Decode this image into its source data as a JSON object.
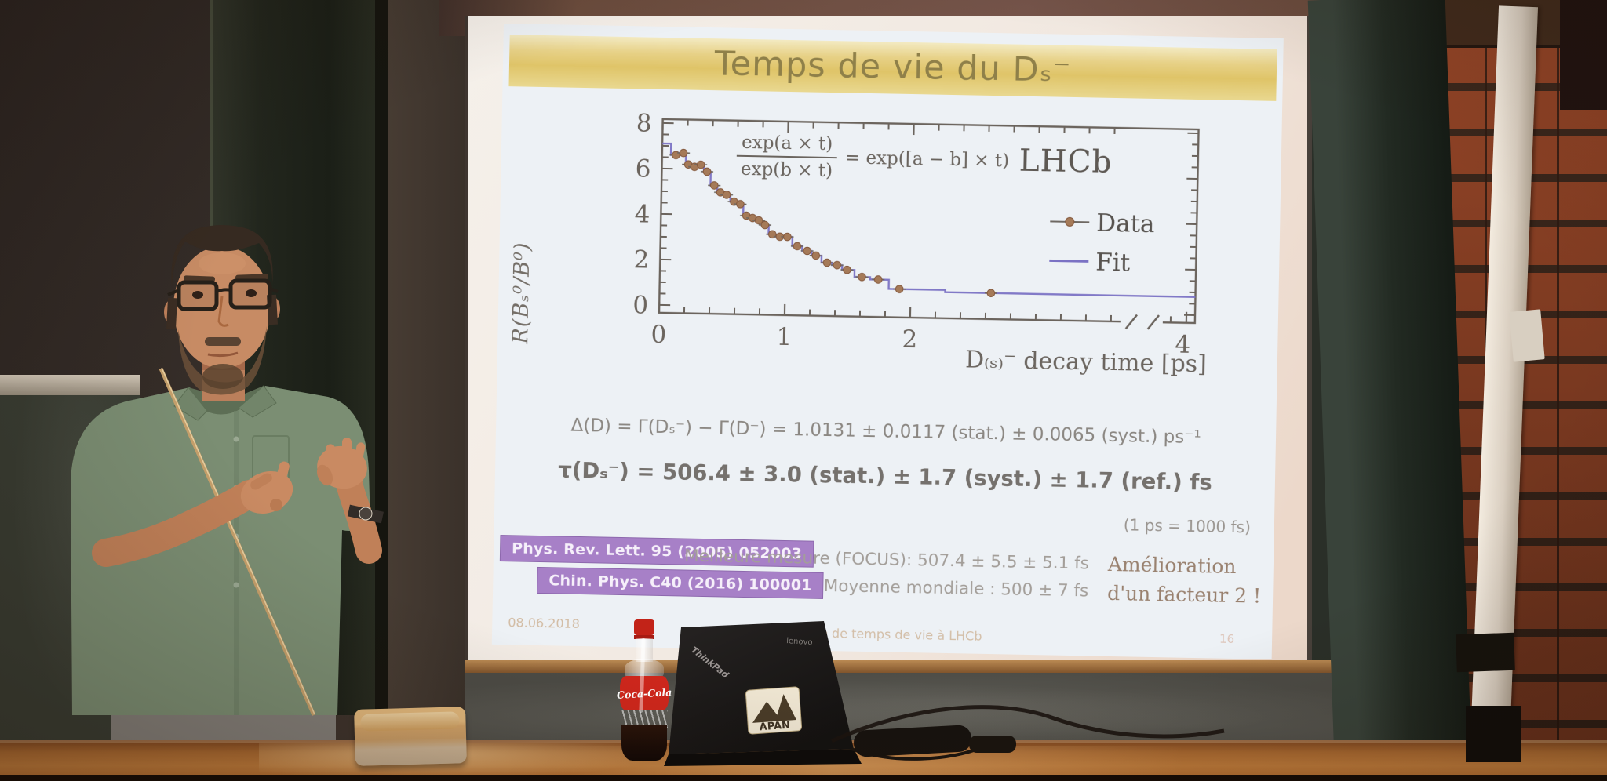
{
  "slide": {
    "title": "Temps de vie du Dₛ⁻",
    "equation_delta": "Δ(D) = Γ(Dₛ⁻) − Γ(D⁻) = 1.0131 ± 0.0117 (stat.) ± 0.0065 (syst.) ps⁻¹",
    "equation_tau": "τ(Dₛ⁻) = 506.4 ± 3.0 (stat.) ± 1.7 (syst.) ± 1.7 (ref.) fs",
    "unit_note": "(1 ps = 1000 fs)",
    "references": [
      "Phys. Rev. Lett. 95 (2005) 052003",
      "Chin. Phys. C40 (2016) 100001"
    ],
    "comparison_line1": "Meilleure mesure (FOCUS): 507.4 ± 5.5 ± 5.1 fs",
    "comparison_line2": "Moyenne mondiale : 500 ± 7 fs",
    "improvement_line1": "Amélioration",
    "improvement_line2": "d'un facteur 2 !",
    "footer": {
      "date": "08.06.2018",
      "center": "Mesure de temps de vie à LHCb",
      "page": "16"
    },
    "colors": {
      "banner_gold": "#dfc468",
      "banner_text": "#8f8049",
      "ref_box_purple": "#a780c7",
      "slide_bg": "#edf1f5"
    }
  },
  "chart_data": {
    "type": "line",
    "title": "",
    "xlabel": "D₍ₛ₎⁻ decay time [ps]",
    "ylabel": "R(Bₛ⁰/B⁰)",
    "annotation": "LHCb",
    "formula": {
      "numerator": "exp(a × t)",
      "denominator": "exp(b × t)",
      "rhs": "= exp([a − b] × t)"
    },
    "x_ticks_labeled": [
      0,
      1,
      2
    ],
    "x_end_label": "4",
    "x_axis_break": [
      2.9,
      3.9
    ],
    "xlim": [
      0,
      4
    ],
    "y_ticks": [
      0,
      2,
      4,
      6,
      8
    ],
    "ylim": [
      0,
      8.2
    ],
    "grid": false,
    "legend_position": "inside-right",
    "axis_color": "#6b645d",
    "fit_start_value": 7.1,
    "legend": [
      {
        "name": "Data",
        "color": "#a57a58",
        "marker": "dot-with-errorbar"
      },
      {
        "name": "Fit",
        "color": "#7b72c4",
        "marker": "line"
      }
    ],
    "series": [
      {
        "name": "Data",
        "x": [
          0.11,
          0.17,
          0.21,
          0.26,
          0.31,
          0.36,
          0.42,
          0.47,
          0.52,
          0.58,
          0.63,
          0.68,
          0.73,
          0.78,
          0.83,
          0.89,
          0.95,
          1.01,
          1.09,
          1.17,
          1.24,
          1.33,
          1.41,
          1.49,
          1.61,
          1.74,
          1.91,
          2.64
        ],
        "y": [
          6.6,
          6.7,
          6.2,
          6.1,
          6.2,
          5.9,
          5.3,
          5.0,
          4.9,
          4.6,
          4.5,
          4.0,
          3.9,
          3.8,
          3.6,
          3.2,
          3.1,
          3.1,
          2.7,
          2.5,
          2.3,
          2.0,
          1.9,
          1.7,
          1.4,
          1.3,
          0.9,
          0.8
        ]
      },
      {
        "name": "Fit",
        "style": "step",
        "follows": "Data"
      }
    ]
  },
  "objects": {
    "bottle_brand": "Coca-Cola",
    "laptop_brand": "ThinkPad",
    "laptop_lid_logo": "lenovo",
    "laptop_sticker": "APAN"
  }
}
